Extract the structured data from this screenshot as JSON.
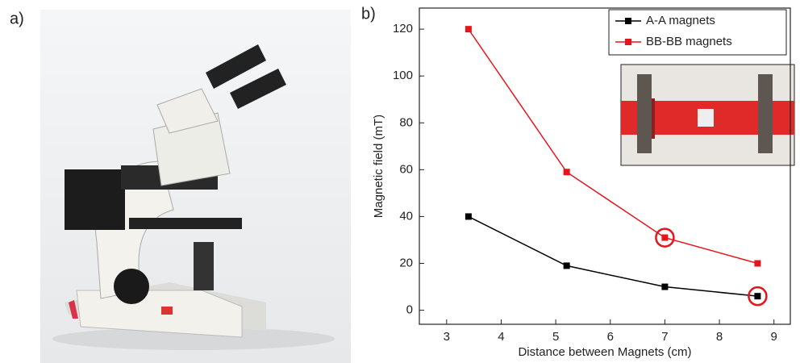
{
  "panel_labels": [
    "a)",
    "b)"
  ],
  "chart_data": {
    "type": "line",
    "x_label": "Distance between Magnets (cm)",
    "y_label": "Magnetic field (mT)",
    "xlim": [
      2.5,
      9.3
    ],
    "xticks": [
      3,
      4,
      5,
      6,
      7,
      8,
      9
    ],
    "ylim": [
      -6,
      129
    ],
    "yticks": [
      0,
      20,
      40,
      60,
      80,
      100,
      120
    ],
    "legend": "upper right",
    "series": [
      {
        "name": "A-A magnets",
        "color": "#000000",
        "x": [
          3.4,
          5.2,
          7.0,
          8.7
        ],
        "values": [
          40,
          19,
          10,
          6
        ]
      },
      {
        "name": "BB-BB magnets",
        "color": "#e8141b",
        "x": [
          3.4,
          5.2,
          7.0,
          8.7
        ],
        "values": [
          120,
          59,
          31,
          20
        ]
      }
    ],
    "highlighted_points": [
      {
        "series": 1,
        "index": 2
      },
      {
        "series": 0,
        "index": 3
      }
    ],
    "highlight_color": "#e8141b"
  }
}
